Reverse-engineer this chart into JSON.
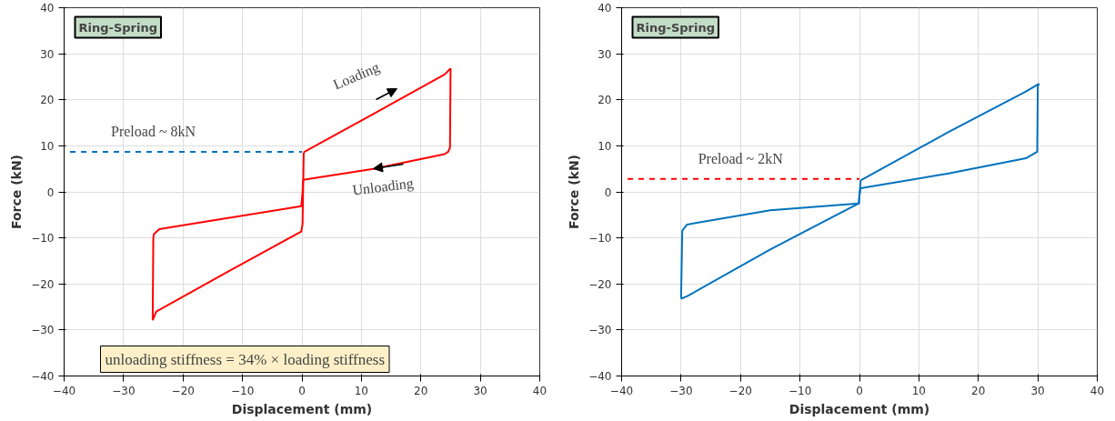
{
  "chart_data": [
    {
      "type": "line",
      "xlabel": "Displacement (mm)",
      "ylabel": "Force (kN)",
      "xlim": [
        -40,
        40
      ],
      "ylim": [
        -40,
        40
      ],
      "xticks": [
        -40,
        -30,
        -20,
        -10,
        0,
        10,
        20,
        30,
        40
      ],
      "yticks": [
        -40,
        -30,
        -20,
        -10,
        0,
        10,
        20,
        30,
        40
      ],
      "grid": true,
      "series": [
        {
          "color": "#ff0000",
          "line_style": "solid",
          "x": [
            0.3,
            12,
            24,
            25
          ],
          "values": [
            8.6,
            16.9,
            25.5,
            26.8
          ]
        },
        {
          "color": "#ff0000",
          "line_style": "solid",
          "x": [
            25,
            24.9,
            24.6,
            24,
            12,
            0.2
          ],
          "values": [
            26.8,
            9.6,
            8.7,
            8.2,
            5,
            2.6
          ]
        },
        {
          "color": "#ff0000",
          "line_style": "solid",
          "x": [
            0.2,
            0.1,
            -0.1,
            -12,
            -24,
            -24.9,
            -25,
            -25.1
          ],
          "values": [
            2.6,
            0,
            -3.1,
            -5.6,
            -8.1,
            -9.2,
            -10,
            -27.9
          ]
        },
        {
          "color": "#ff0000",
          "line_style": "solid",
          "x": [
            -25.1,
            -24.5,
            -12,
            -0.1,
            0.1,
            0.3
          ],
          "values": [
            -27.9,
            -26,
            -17,
            -8.6,
            -7,
            8.6
          ]
        },
        {
          "color": "#0072bd",
          "line_style": "dashed",
          "x": [
            -39,
            0
          ],
          "values": [
            8.7,
            8.7
          ]
        }
      ],
      "annotations": [
        "Ring-Spring",
        {
          "text": "Preload ~ 8kN",
          "x": -25,
          "y": 8.7
        },
        "Loading",
        "Unloading",
        "unloading stiffness = 34% × loading stiffness"
      ]
    },
    {
      "type": "line",
      "xlabel": "Displacement (mm)",
      "ylabel": "Force (kN)",
      "xlim": [
        -40,
        40
      ],
      "ylim": [
        -40,
        40
      ],
      "xticks": [
        -40,
        -30,
        -20,
        -10,
        0,
        10,
        20,
        30,
        40
      ],
      "yticks": [
        -40,
        -30,
        -20,
        -10,
        0,
        10,
        20,
        30,
        40
      ],
      "grid": true,
      "series": [
        {
          "color": "#0072bd",
          "line_style": "solid",
          "x": [
            0.2,
            15,
            28,
            30.2
          ],
          "values": [
            2.5,
            13,
            21.8,
            23.5
          ]
        },
        {
          "color": "#0072bd",
          "line_style": "solid",
          "x": [
            30.2,
            30,
            29.9,
            28,
            15,
            0.2
          ],
          "values": [
            23.5,
            23,
            8.7,
            7.3,
            4,
            0.8
          ]
        },
        {
          "color": "#0072bd",
          "line_style": "solid",
          "x": [
            0.2,
            0,
            -0.1,
            -15,
            -29,
            -29.8,
            -30
          ],
          "values": [
            0.8,
            -0.8,
            -2.5,
            -4,
            -7.1,
            -8.4,
            -23.2
          ]
        },
        {
          "color": "#0072bd",
          "line_style": "solid",
          "x": [
            -30,
            -29,
            -15,
            -0.1,
            0.2
          ],
          "values": [
            -23.2,
            -22.7,
            -12.5,
            -2.5,
            2.5
          ]
        },
        {
          "color": "#ff0000",
          "line_style": "dashed",
          "x": [
            -39,
            0
          ],
          "values": [
            2.8,
            2.8
          ]
        }
      ],
      "annotations": [
        "Ring-Spring",
        {
          "text": "Preload ~ 2kN",
          "x": -20,
          "y": 2.8
        }
      ]
    }
  ]
}
